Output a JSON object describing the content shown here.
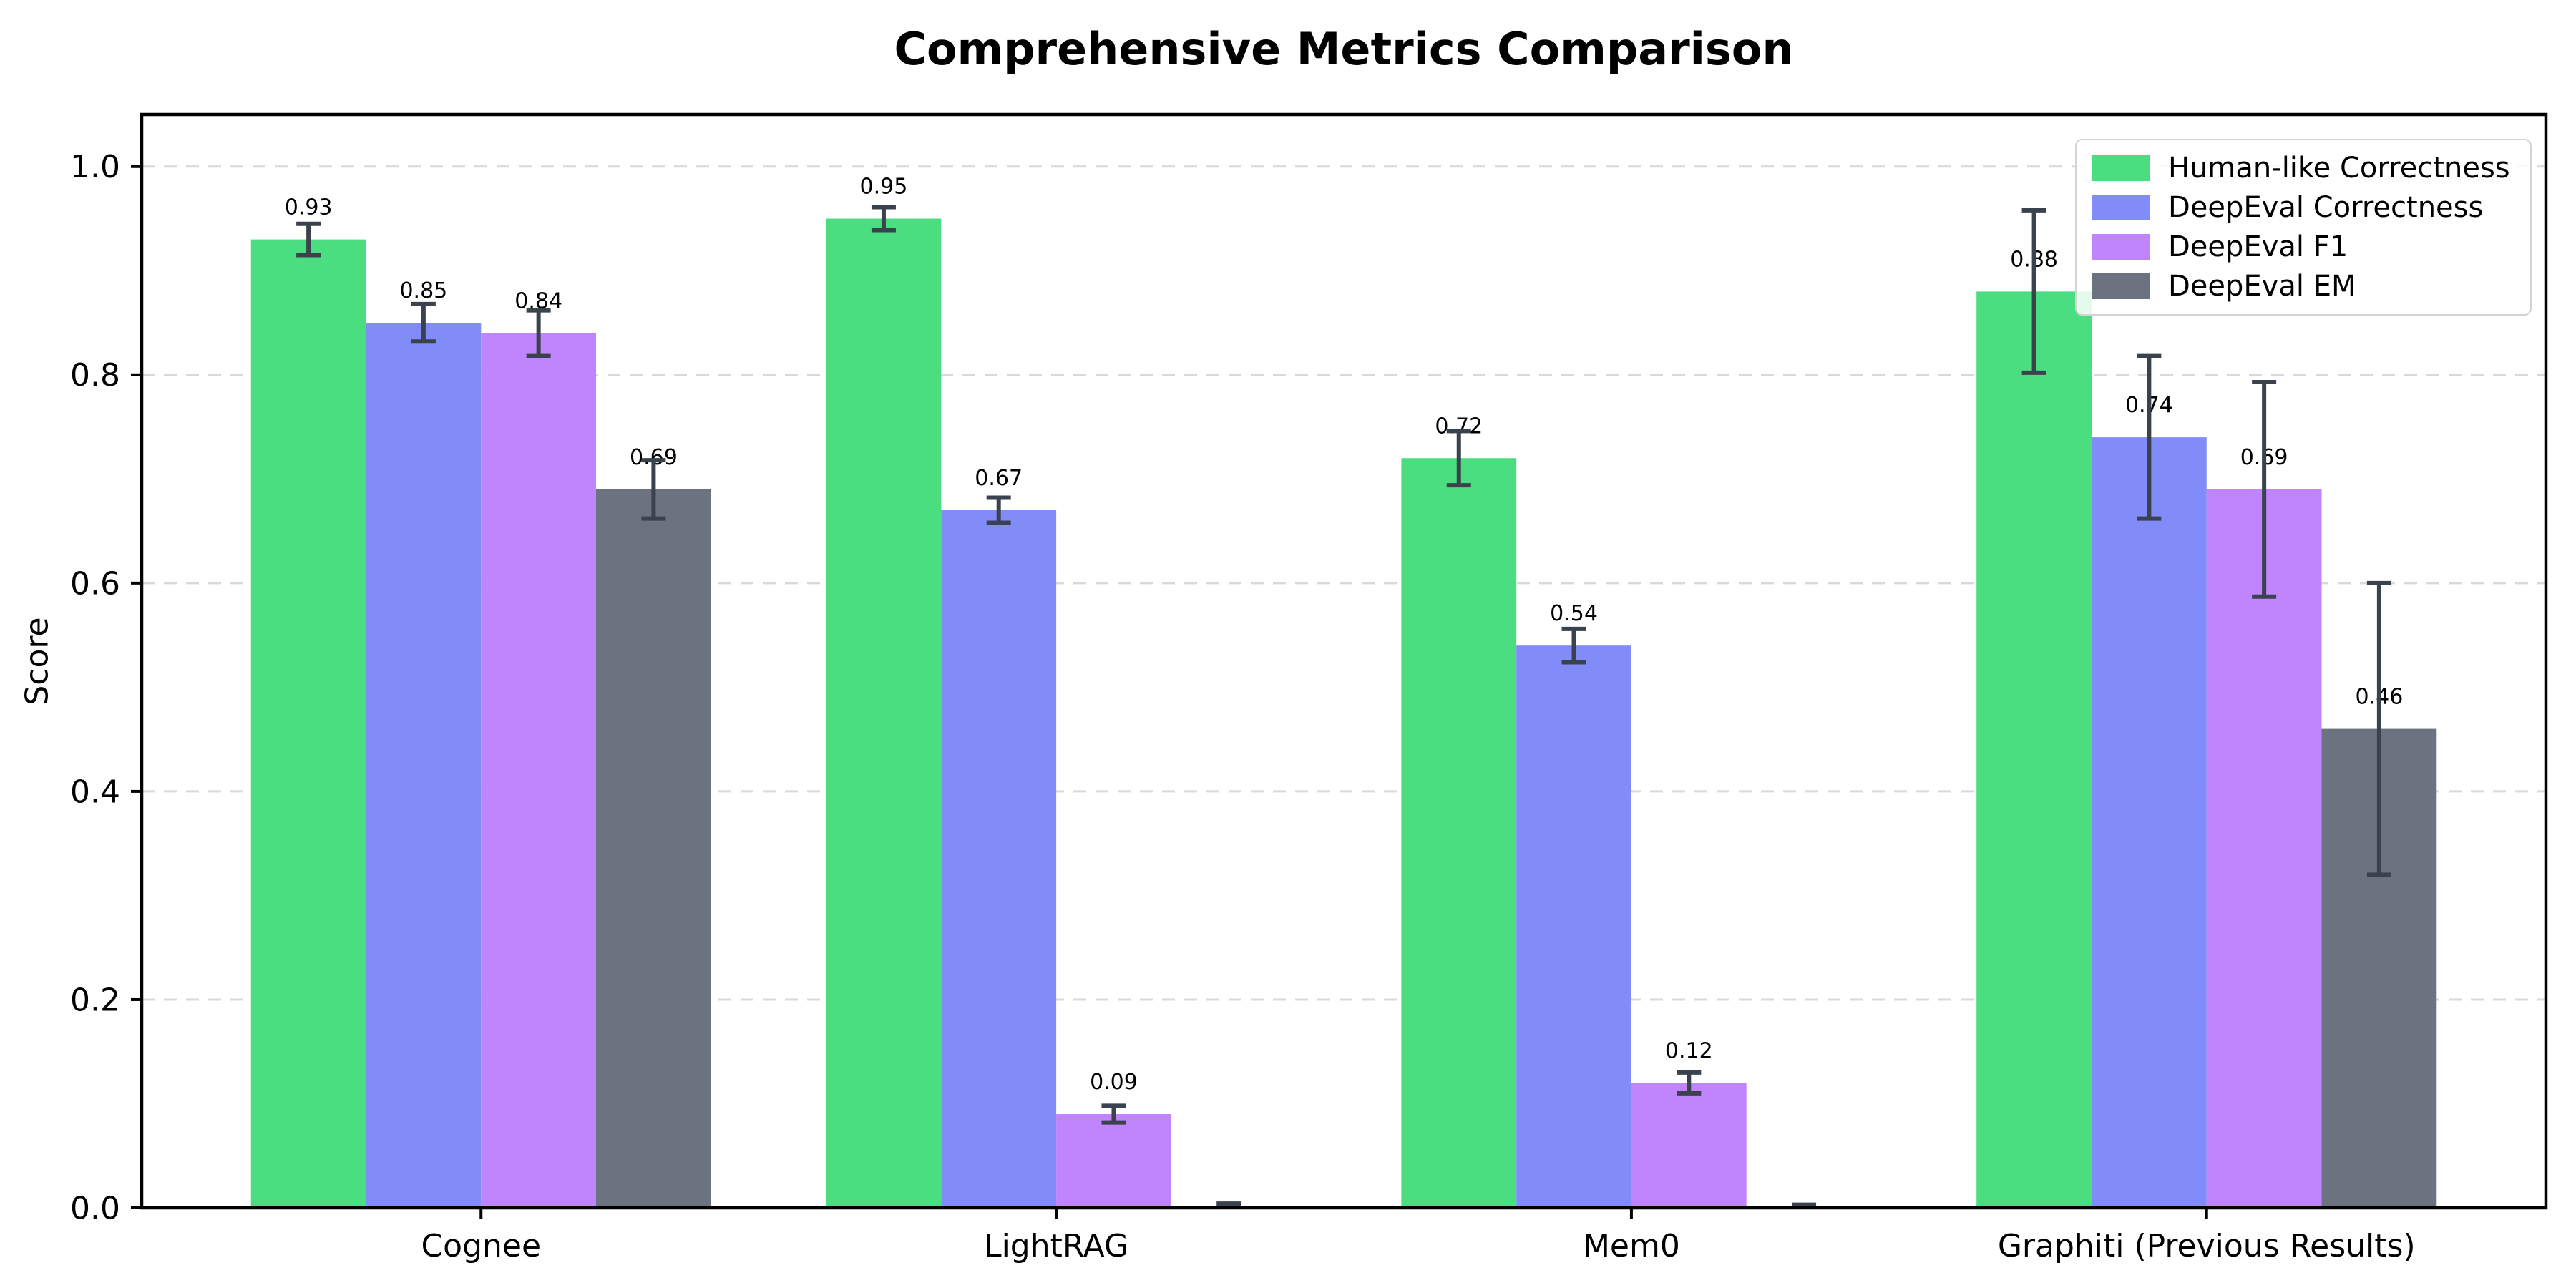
{
  "chart_data": {
    "type": "bar",
    "title": "Comprehensive Metrics Comparison",
    "ylabel": "Score",
    "xlabel": "",
    "categories": [
      "Cognee",
      "LightRAG",
      "Mem0",
      "Graphiti (Previous Results)"
    ],
    "series": [
      {
        "name": "Human-like Correctness",
        "color": "#4ade80",
        "values": [
          0.93,
          0.95,
          0.72,
          0.88
        ],
        "errors": [
          0.015,
          0.011,
          0.026,
          0.078
        ],
        "bar_labels": [
          "0.93",
          "0.95",
          "0.72",
          "0.88"
        ]
      },
      {
        "name": "DeepEval Correctness",
        "color": "#818cf8",
        "values": [
          0.85,
          0.67,
          0.54,
          0.74
        ],
        "errors": [
          0.018,
          0.012,
          0.016,
          0.078
        ],
        "bar_labels": [
          "0.85",
          "0.67",
          "0.54",
          "0.74"
        ]
      },
      {
        "name": "DeepEval F1",
        "color": "#c084fc",
        "values": [
          0.84,
          0.09,
          0.12,
          0.69
        ],
        "errors": [
          0.022,
          0.008,
          0.01,
          0.103
        ],
        "bar_labels": [
          "0.84",
          "0.09",
          "0.12",
          "0.69"
        ]
      },
      {
        "name": "DeepEval EM",
        "color": "#6b7280",
        "values": [
          0.69,
          0.0,
          0.0,
          0.46
        ],
        "errors": [
          0.028,
          0.004,
          0.003,
          0.14
        ],
        "bar_labels": [
          "0.69",
          "",
          "",
          "0.46"
        ]
      }
    ],
    "y_ticks": [
      {
        "value": 0.0,
        "label": "0.0"
      },
      {
        "value": 0.2,
        "label": "0.2"
      },
      {
        "value": 0.4,
        "label": "0.4"
      },
      {
        "value": 0.6,
        "label": "0.6"
      },
      {
        "value": 0.8,
        "label": "0.8"
      },
      {
        "value": 1.0,
        "label": "1.0"
      }
    ],
    "ylim": [
      0,
      1.05
    ],
    "grid": "horizontal-dashed",
    "legend_position": "upper-right",
    "bar_width": 0.2,
    "group_offsets": [
      -0.3,
      -0.1,
      0.1,
      0.3
    ],
    "colors": {
      "error_bar": "#3a424e",
      "grid": "#d9d9d9",
      "axis": "#000000",
      "tick_label": "#000000",
      "bar_label": "#000000",
      "background": "#ffffff"
    }
  }
}
